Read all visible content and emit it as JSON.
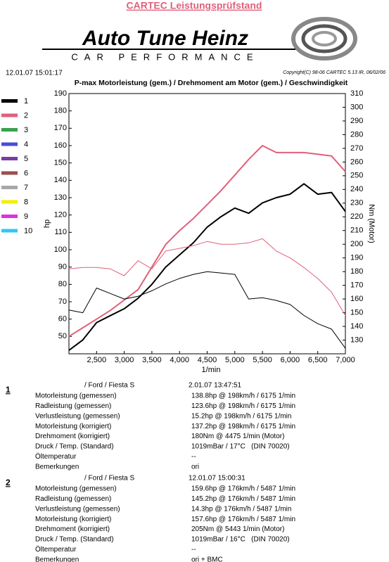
{
  "header": {
    "title": "CARTEC Leistungsprüfstand",
    "brand": "Auto Tune Heinz",
    "tagline": "CAR PERFORMANCE",
    "timestamp": "12.01.07 15:01:17",
    "copyright": "Copyright(C) 98-06 CARTEC 5.13 IR, 06/02/06"
  },
  "legend": [
    {
      "label": "1",
      "color": "#000000"
    },
    {
      "label": "2",
      "color": "#e0607a"
    },
    {
      "label": "3",
      "color": "#3aa050"
    },
    {
      "label": "4",
      "color": "#4a4adc"
    },
    {
      "label": "5",
      "color": "#7a3aa8"
    },
    {
      "label": "6",
      "color": "#9a5050"
    },
    {
      "label": "7",
      "color": "#a8a8a8"
    },
    {
      "label": "8",
      "color": "#f0f000"
    },
    {
      "label": "9",
      "color": "#e030e0"
    },
    {
      "label": "10",
      "color": "#30c8f0"
    }
  ],
  "chart_data": {
    "type": "line",
    "title": "P-max Motorleistung (gem.) / Drehmoment am Motor (gem.) / Geschwindigkeit",
    "xlabel": "1/min",
    "ylabel": "hp",
    "y2label": "Nm (Motor)",
    "x": [
      2000,
      2250,
      2500,
      2750,
      3000,
      3250,
      3500,
      3750,
      4000,
      4250,
      4500,
      4750,
      5000,
      5250,
      5500,
      5750,
      6000,
      6250,
      6500,
      6750,
      7000
    ],
    "xlim": [
      2000,
      7000
    ],
    "xticks": [
      {
        "value": 2500,
        "label": "2,500"
      },
      {
        "value": 3000,
        "label": "3,000"
      },
      {
        "value": 3500,
        "label": "3,500"
      },
      {
        "value": 4000,
        "label": "4,000"
      },
      {
        "value": 4500,
        "label": "4,500"
      },
      {
        "value": 5000,
        "label": "5,000"
      },
      {
        "value": 5500,
        "label": "5,500"
      },
      {
        "value": 6000,
        "label": "6,000"
      },
      {
        "value": 6500,
        "label": "6,500"
      },
      {
        "value": 7000,
        "label": "7,000"
      }
    ],
    "ylim": [
      40,
      190
    ],
    "yticks": [
      50,
      60,
      70,
      80,
      90,
      100,
      110,
      120,
      130,
      140,
      150,
      160,
      170,
      180,
      190
    ],
    "y2lim": [
      120,
      310
    ],
    "y2ticks": [
      130,
      140,
      150,
      160,
      170,
      180,
      190,
      200,
      210,
      220,
      230,
      240,
      250,
      260,
      270,
      280,
      290,
      300,
      310
    ],
    "grid": false,
    "series": [
      {
        "color": "#000000",
        "line_width": 2,
        "values": [
          42,
          48,
          58,
          62,
          66,
          72,
          80,
          90,
          97,
          104,
          113,
          119,
          124,
          121,
          127,
          130,
          132,
          138,
          132,
          133,
          122
        ]
      },
      {
        "color": "#e0607a",
        "line_width": 2,
        "values": [
          50,
          55,
          60,
          65,
          71,
          77,
          90,
          103,
          111,
          118,
          126,
          134,
          143,
          152,
          160,
          156,
          156,
          156,
          155,
          154,
          145
        ]
      },
      {
        "color": "#000000",
        "line_width": 1,
        "axis": "y2",
        "values": [
          152,
          150,
          168,
          164,
          160,
          162,
          166,
          171,
          175,
          178,
          180,
          179,
          178,
          160,
          161,
          159,
          156,
          148,
          142,
          138,
          124
        ]
      },
      {
        "color": "#e0607a",
        "line_width": 1,
        "axis": "y2",
        "values": [
          182,
          183,
          183,
          182,
          177,
          188,
          182,
          195,
          197,
          199,
          202,
          200,
          200,
          201,
          204,
          195,
          190,
          183,
          175,
          165,
          148
        ]
      }
    ]
  },
  "runs": [
    {
      "number": "1",
      "vehicle": "/ Ford / Fiesta S",
      "date": "2.01.07 13:47:51",
      "rows": [
        [
          "Motorleistung (gemessen)",
          "138.8hp @ 198km/h / 6175 1/min"
        ],
        [
          "Radleistung (gemessen)",
          "123.6hp @ 198km/h / 6175 1/min"
        ],
        [
          "Verlustleistung (gemessen)",
          "15.2hp @ 198km/h / 6175 1/min"
        ],
        [
          "Motorleistung (korrigiert)",
          "137.2hp @ 198km/h / 6175 1/min"
        ],
        [
          "Drehmoment (korrigiert)",
          "180Nm @ 4475 1/min (Motor)"
        ],
        [
          "Druck / Temp. (Standard)",
          "1019mBar / 17°C   (DIN 70020)"
        ],
        [
          "Öltemperatur",
          "--"
        ],
        [
          "Bemerkungen",
          "ori"
        ]
      ]
    },
    {
      "number": "2",
      "vehicle": "/ Ford / Fiesta S",
      "date": "12.01.07 15:00:31",
      "rows": [
        [
          "Motorleistung (gemessen)",
          "159.6hp @ 176km/h / 5487 1/min"
        ],
        [
          "Radleistung (gemessen)",
          "145.2hp @ 176km/h / 5487 1/min"
        ],
        [
          "Verlustleistung (gemessen)",
          "14.3hp @ 176km/h / 5487 1/min"
        ],
        [
          "Motorleistung (korrigiert)",
          "157.6hp @ 176km/h / 5487 1/min"
        ],
        [
          "Drehmoment (korrigiert)",
          "205Nm @ 5443 1/min (Motor)"
        ],
        [
          "Druck / Temp. (Standard)",
          "1019mBar / 16°C   (DIN 70020)"
        ],
        [
          "Öltemperatur",
          "--"
        ],
        [
          "Bemerkungen",
          "ori + BMC"
        ]
      ]
    }
  ]
}
